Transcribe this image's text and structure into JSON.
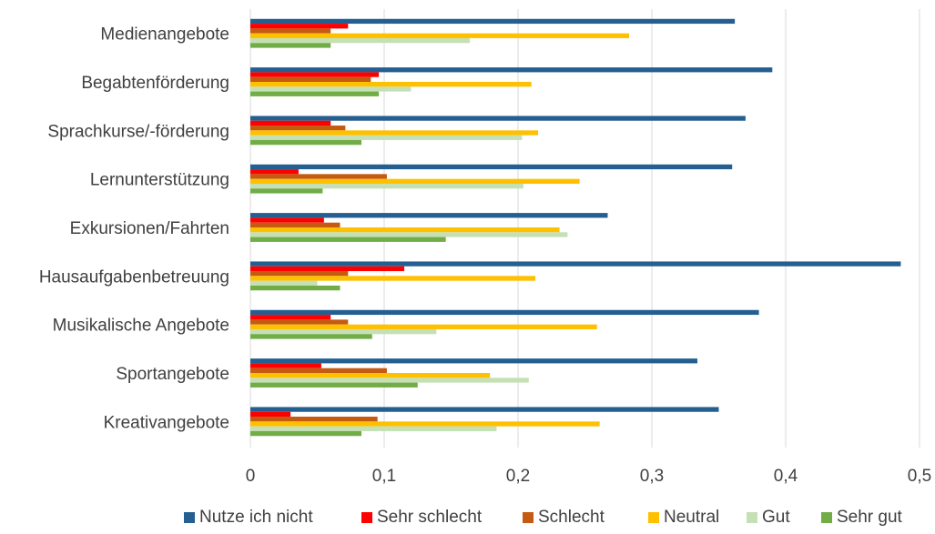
{
  "chart_data": {
    "type": "bar",
    "orientation": "horizontal",
    "categories": [
      "Medienangebote",
      "Begabtenförderung",
      "Sprachkurse/-förderung",
      "Lernunterstützung",
      "Exkursionen/Fahrten",
      "Hausaufgabenbetreuung",
      "Musikalische Angebote",
      "Sportangebote",
      "Kreativangebote"
    ],
    "series": [
      {
        "name": "Nutze ich nicht",
        "color": "#255e91",
        "values": [
          0.362,
          0.39,
          0.37,
          0.36,
          0.267,
          0.486,
          0.38,
          0.334,
          0.35
        ]
      },
      {
        "name": "Sehr schlecht",
        "color": "#ff0000",
        "values": [
          0.073,
          0.096,
          0.06,
          0.036,
          0.055,
          0.115,
          0.06,
          0.053,
          0.03
        ]
      },
      {
        "name": "Schlecht",
        "color": "#c55a11",
        "values": [
          0.06,
          0.09,
          0.071,
          0.102,
          0.067,
          0.073,
          0.073,
          0.102,
          0.095
        ]
      },
      {
        "name": "Neutral",
        "color": "#ffc000",
        "values": [
          0.283,
          0.21,
          0.215,
          0.246,
          0.231,
          0.213,
          0.259,
          0.179,
          0.261
        ]
      },
      {
        "name": "Gut",
        "color": "#c5e0b4",
        "values": [
          0.164,
          0.12,
          0.203,
          0.204,
          0.237,
          0.05,
          0.139,
          0.208,
          0.184
        ]
      },
      {
        "name": "Sehr gut",
        "color": "#70ad47",
        "values": [
          0.06,
          0.096,
          0.083,
          0.054,
          0.146,
          0.067,
          0.091,
          0.125,
          0.083
        ]
      }
    ],
    "xlim": [
      0,
      0.5
    ],
    "xticks": [
      "0",
      "0,1",
      "0,2",
      "0,3",
      "0,4",
      "0,5"
    ],
    "grid": true,
    "legend_position": "bottom",
    "title": "",
    "xlabel": "",
    "ylabel": ""
  }
}
